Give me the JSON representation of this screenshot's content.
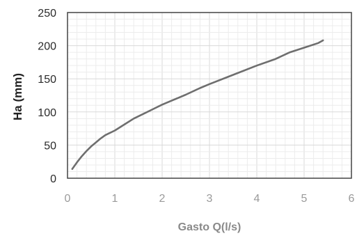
{
  "colors": {
    "curve": "#6e6e6e",
    "grid_major": "#d9d9d9",
    "grid_minor": "#ececec",
    "frame": "#444444"
  },
  "chart_data": {
    "type": "line",
    "xlabel": "Gasto  Q(l/s)",
    "ylabel": "Ha (mm)",
    "xlim": [
      0,
      6
    ],
    "ylim": [
      0,
      250
    ],
    "x_ticks": [
      "0",
      "1",
      "2",
      "3",
      "4",
      "5",
      "6"
    ],
    "y_ticks": [
      "0",
      "50",
      "100",
      "150",
      "200",
      "250"
    ],
    "grid": true,
    "series": [
      {
        "x": [
          0.1,
          0.2,
          0.3,
          0.4,
          0.5,
          0.6,
          0.7,
          0.8,
          1.0,
          1.2,
          1.4,
          1.6,
          1.8,
          2.0,
          2.2,
          2.5,
          2.8,
          3.0,
          3.5,
          4.0,
          4.4,
          4.7,
          5.0,
          5.3,
          5.4
        ],
        "y": [
          14,
          24,
          33,
          41,
          48,
          54,
          60,
          65,
          72,
          81,
          90,
          97,
          104,
          111,
          117,
          126,
          136,
          142,
          156,
          170,
          180,
          190,
          197,
          204,
          208
        ]
      }
    ]
  }
}
